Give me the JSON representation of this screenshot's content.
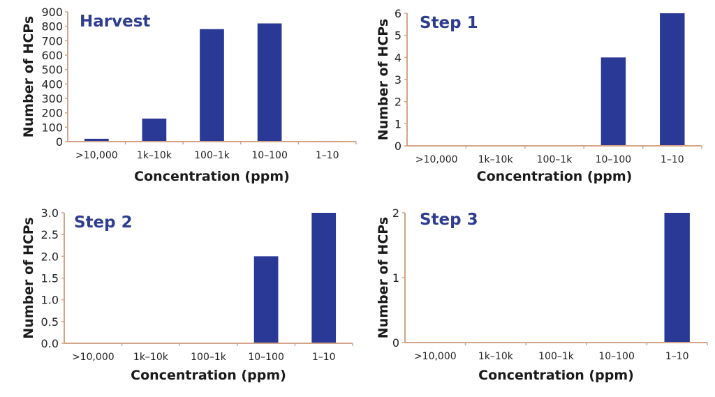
{
  "colors": {
    "bar": "#2a3896",
    "axis": "#d3a487",
    "title": "#2e3d8f"
  },
  "chart_data": [
    {
      "type": "bar",
      "title": "Harvest",
      "xlabel": "Concentration (ppm)",
      "ylabel": "Number of HCPs",
      "categories": [
        ">10,000",
        "1k–10k",
        "100–1k",
        "10–100",
        "1–10"
      ],
      "values": [
        20,
        160,
        780,
        820,
        5
      ],
      "ylim": [
        0,
        900
      ],
      "yticks": [
        "0",
        "100",
        "200",
        "300",
        "400",
        "500",
        "600",
        "700",
        "800",
        "900"
      ],
      "ytick_values": [
        0,
        100,
        200,
        300,
        400,
        500,
        600,
        700,
        800,
        900
      ],
      "grid": false
    },
    {
      "type": "bar",
      "title": "Step 1",
      "xlabel": "Concentration (ppm)",
      "ylabel": "Number of HCPs",
      "categories": [
        ">10,000",
        "1k–10k",
        "100–1k",
        "10–100",
        "1–10"
      ],
      "values": [
        0,
        0,
        0,
        4,
        6
      ],
      "ylim": [
        0,
        6
      ],
      "yticks": [
        "0",
        "1",
        "2",
        "3",
        "4",
        "5",
        "6"
      ],
      "ytick_values": [
        0,
        1,
        2,
        3,
        4,
        5,
        6
      ],
      "grid": false
    },
    {
      "type": "bar",
      "title": "Step 2",
      "xlabel": "Concentration (ppm)",
      "ylabel": "Number of HCPs",
      "categories": [
        ">10,000",
        "1k–10k",
        "100–1k",
        "10–100",
        "1–10"
      ],
      "values": [
        0,
        0,
        0,
        2,
        3
      ],
      "ylim": [
        0,
        3
      ],
      "yticks": [
        "0.0",
        "0.5",
        "1.0",
        "1.5",
        "2.0",
        "2.5",
        "3.0"
      ],
      "ytick_values": [
        0,
        0.5,
        1,
        1.5,
        2,
        2.5,
        3
      ],
      "grid": false
    },
    {
      "type": "bar",
      "title": "Step 3",
      "xlabel": "Concentration (ppm)",
      "ylabel": "Number of HCPs",
      "categories": [
        ">10,000",
        "1k–10k",
        "100–1k",
        "10–100",
        "1–10"
      ],
      "values": [
        0,
        0,
        0,
        0,
        2
      ],
      "ylim": [
        0,
        2
      ],
      "yticks": [
        "0",
        "1",
        "2"
      ],
      "ytick_values": [
        0,
        1,
        2
      ],
      "grid": false
    }
  ]
}
